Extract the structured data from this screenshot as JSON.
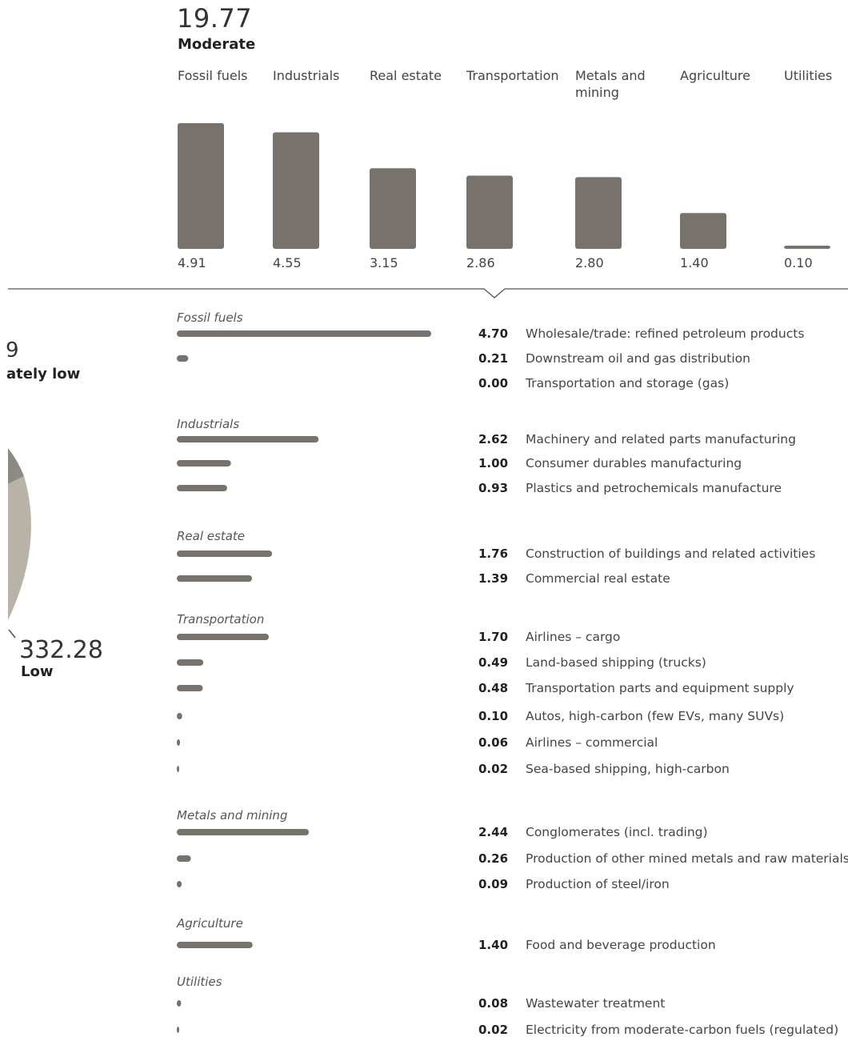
{
  "header": {
    "total": "19.77",
    "rating": "Moderate"
  },
  "side_labels": {
    "upper": {
      "value": "9",
      "rating": "ately low"
    },
    "lower": {
      "value": "332.28",
      "rating": "Low"
    }
  },
  "colors": {
    "bar": "#77736c",
    "pie_dark": "#8c8a83",
    "pie_light": "#b7b3a7",
    "axis": "#555555"
  },
  "chart_data": [
    {
      "type": "bar",
      "categories": [
        "Fossil fuels",
        "Industrials",
        "Real estate",
        "Transportation",
        "Metals and mining",
        "Agriculture",
        "Utilities"
      ],
      "category_lines": [
        [
          "Fossil fuels"
        ],
        [
          "Industrials"
        ],
        [
          "Real estate"
        ],
        [
          "Transportation"
        ],
        [
          "Metals and",
          "mining"
        ],
        [
          "Agriculture"
        ],
        [
          "Utilities"
        ]
      ],
      "values": [
        4.91,
        4.55,
        3.15,
        2.86,
        2.8,
        1.4,
        0.1
      ],
      "value_labels": [
        "4.91",
        "4.55",
        "3.15",
        "2.86",
        "2.80",
        "1.40",
        "0.10"
      ],
      "ylim": [
        0,
        5
      ]
    },
    {
      "type": "bar",
      "orientation": "horizontal",
      "xlim": [
        0,
        4.7
      ],
      "groups": [
        {
          "title": "Fossil fuels",
          "items": [
            {
              "value": 4.7,
              "value_label": "4.70",
              "label": "Wholesale/trade: refined petroleum products"
            },
            {
              "value": 0.21,
              "value_label": "0.21",
              "label": "Downstream oil and gas distribution"
            },
            {
              "value": 0.0,
              "value_label": "0.00",
              "label": "Transportation and storage (gas)"
            }
          ]
        },
        {
          "title": "Industrials",
          "items": [
            {
              "value": 2.62,
              "value_label": "2.62",
              "label": "Machinery and related parts manufacturing"
            },
            {
              "value": 1.0,
              "value_label": "1.00",
              "label": "Consumer durables manufacturing"
            },
            {
              "value": 0.93,
              "value_label": "0.93",
              "label": "Plastics and petrochemicals manufacture"
            }
          ]
        },
        {
          "title": "Real estate",
          "items": [
            {
              "value": 1.76,
              "value_label": "1.76",
              "label": "Construction of buildings and related activities"
            },
            {
              "value": 1.39,
              "value_label": "1.39",
              "label": "Commercial real estate"
            }
          ]
        },
        {
          "title": "Transportation",
          "items": [
            {
              "value": 1.7,
              "value_label": "1.70",
              "label": "Airlines – cargo"
            },
            {
              "value": 0.49,
              "value_label": "0.49",
              "label": "Land-based shipping (trucks)"
            },
            {
              "value": 0.48,
              "value_label": "0.48",
              "label": "Transportation parts and equipment supply"
            },
            {
              "value": 0.1,
              "value_label": "0.10",
              "label": "Autos, high-carbon (few EVs, many SUVs)"
            },
            {
              "value": 0.06,
              "value_label": "0.06",
              "label": "Airlines – commercial"
            },
            {
              "value": 0.02,
              "value_label": "0.02",
              "label": "Sea-based shipping, high-carbon"
            }
          ]
        },
        {
          "title": "Metals and mining",
          "items": [
            {
              "value": 2.44,
              "value_label": "2.44",
              "label": "Conglomerates (incl. trading)"
            },
            {
              "value": 0.26,
              "value_label": "0.26",
              "label": "Production of other mined metals and raw materials"
            },
            {
              "value": 0.09,
              "value_label": "0.09",
              "label": "Production of steel/iron"
            }
          ]
        },
        {
          "title": "Agriculture",
          "items": [
            {
              "value": 1.4,
              "value_label": "1.40",
              "label": "Food and beverage production"
            }
          ]
        },
        {
          "title": "Utilities",
          "items": [
            {
              "value": 0.08,
              "value_label": "0.08",
              "label": "Wastewater treatment"
            },
            {
              "value": 0.02,
              "value_label": "0.02",
              "label": "Electricity from moderate-carbon fuels (regulated)"
            }
          ]
        }
      ]
    }
  ]
}
